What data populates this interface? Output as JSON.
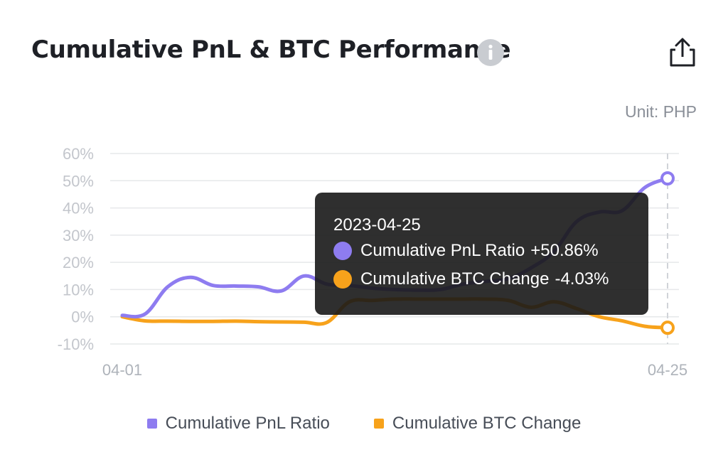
{
  "header": {
    "title": "Cumulative PnL & BTC Performance",
    "info_icon": "info-icon",
    "share_icon": "share-icon"
  },
  "unit_label": "Unit: PHP",
  "tooltip": {
    "date": "2023-04-25",
    "rows": [
      {
        "label": "Cumulative PnL Ratio",
        "value": "+50.86%",
        "color": "#8e7cf0"
      },
      {
        "label": "Cumulative BTC Change",
        "value": "-4.03%",
        "color": "#f7a21b"
      }
    ]
  },
  "legend": [
    {
      "label": "Cumulative PnL Ratio",
      "color": "#8e7cf0"
    },
    {
      "label": "Cumulative BTC Change",
      "color": "#f7a21b"
    }
  ],
  "chart_data": {
    "type": "line",
    "ylabel_unit": "Unit: PHP",
    "x_tick_labels": [
      "04-01",
      "04-25"
    ],
    "y_tick_labels": [
      "60%",
      "50%",
      "40%",
      "30%",
      "20%",
      "10%",
      "0%",
      "-10%"
    ],
    "y_ticks": [
      60,
      50,
      40,
      30,
      20,
      10,
      0,
      -10
    ],
    "ylim": [
      -10,
      60
    ],
    "x": [
      "2023-04-01",
      "2023-04-25"
    ],
    "grid": true,
    "legend_position": "bottom",
    "series": [
      {
        "name": "Cumulative PnL Ratio",
        "color": "#8e7cf0",
        "points": [
          [
            "2023-04-01",
            0.5
          ],
          [
            "2023-04-02",
            1.0
          ],
          [
            "2023-04-03",
            11.0
          ],
          [
            "2023-04-04",
            14.5
          ],
          [
            "2023-04-05",
            11.5
          ],
          [
            "2023-04-06",
            11.3
          ],
          [
            "2023-04-07",
            11.0
          ],
          [
            "2023-04-08",
            9.5
          ],
          [
            "2023-04-09",
            15.0
          ],
          [
            "2023-04-10",
            12.0
          ],
          [
            "2023-04-11",
            11.5
          ],
          [
            "2023-04-12",
            10.5
          ],
          [
            "2023-04-13",
            10.0
          ],
          [
            "2023-04-14",
            9.8
          ],
          [
            "2023-04-15",
            10.0
          ],
          [
            "2023-04-16",
            12.0
          ],
          [
            "2023-04-17",
            13.0
          ],
          [
            "2023-04-18",
            14.0
          ],
          [
            "2023-04-19",
            18.0
          ],
          [
            "2023-04-20",
            24.0
          ],
          [
            "2023-04-21",
            35.0
          ],
          [
            "2023-04-22",
            38.5
          ],
          [
            "2023-04-23",
            39.0
          ],
          [
            "2023-04-24",
            47.5
          ],
          [
            "2023-04-25",
            50.86
          ]
        ]
      },
      {
        "name": "Cumulative BTC Change",
        "color": "#f7a21b",
        "points": [
          [
            "2023-04-01",
            0.0
          ],
          [
            "2023-04-02",
            -1.5
          ],
          [
            "2023-04-03",
            -1.6
          ],
          [
            "2023-04-04",
            -1.7
          ],
          [
            "2023-04-05",
            -1.7
          ],
          [
            "2023-04-06",
            -1.6
          ],
          [
            "2023-04-07",
            -1.8
          ],
          [
            "2023-04-08",
            -1.9
          ],
          [
            "2023-04-09",
            -2.0
          ],
          [
            "2023-04-10",
            -2.1
          ],
          [
            "2023-04-11",
            5.5
          ],
          [
            "2023-04-12",
            6.0
          ],
          [
            "2023-04-13",
            6.5
          ],
          [
            "2023-04-14",
            6.5
          ],
          [
            "2023-04-15",
            6.5
          ],
          [
            "2023-04-16",
            6.5
          ],
          [
            "2023-04-17",
            6.5
          ],
          [
            "2023-04-18",
            6.0
          ],
          [
            "2023-04-19",
            3.5
          ],
          [
            "2023-04-20",
            5.5
          ],
          [
            "2023-04-21",
            3.0
          ],
          [
            "2023-04-22",
            0.0
          ],
          [
            "2023-04-23",
            -1.5
          ],
          [
            "2023-04-24",
            -3.5
          ],
          [
            "2023-04-25",
            -4.03
          ]
        ]
      }
    ],
    "highlighted_point": "2023-04-25"
  }
}
